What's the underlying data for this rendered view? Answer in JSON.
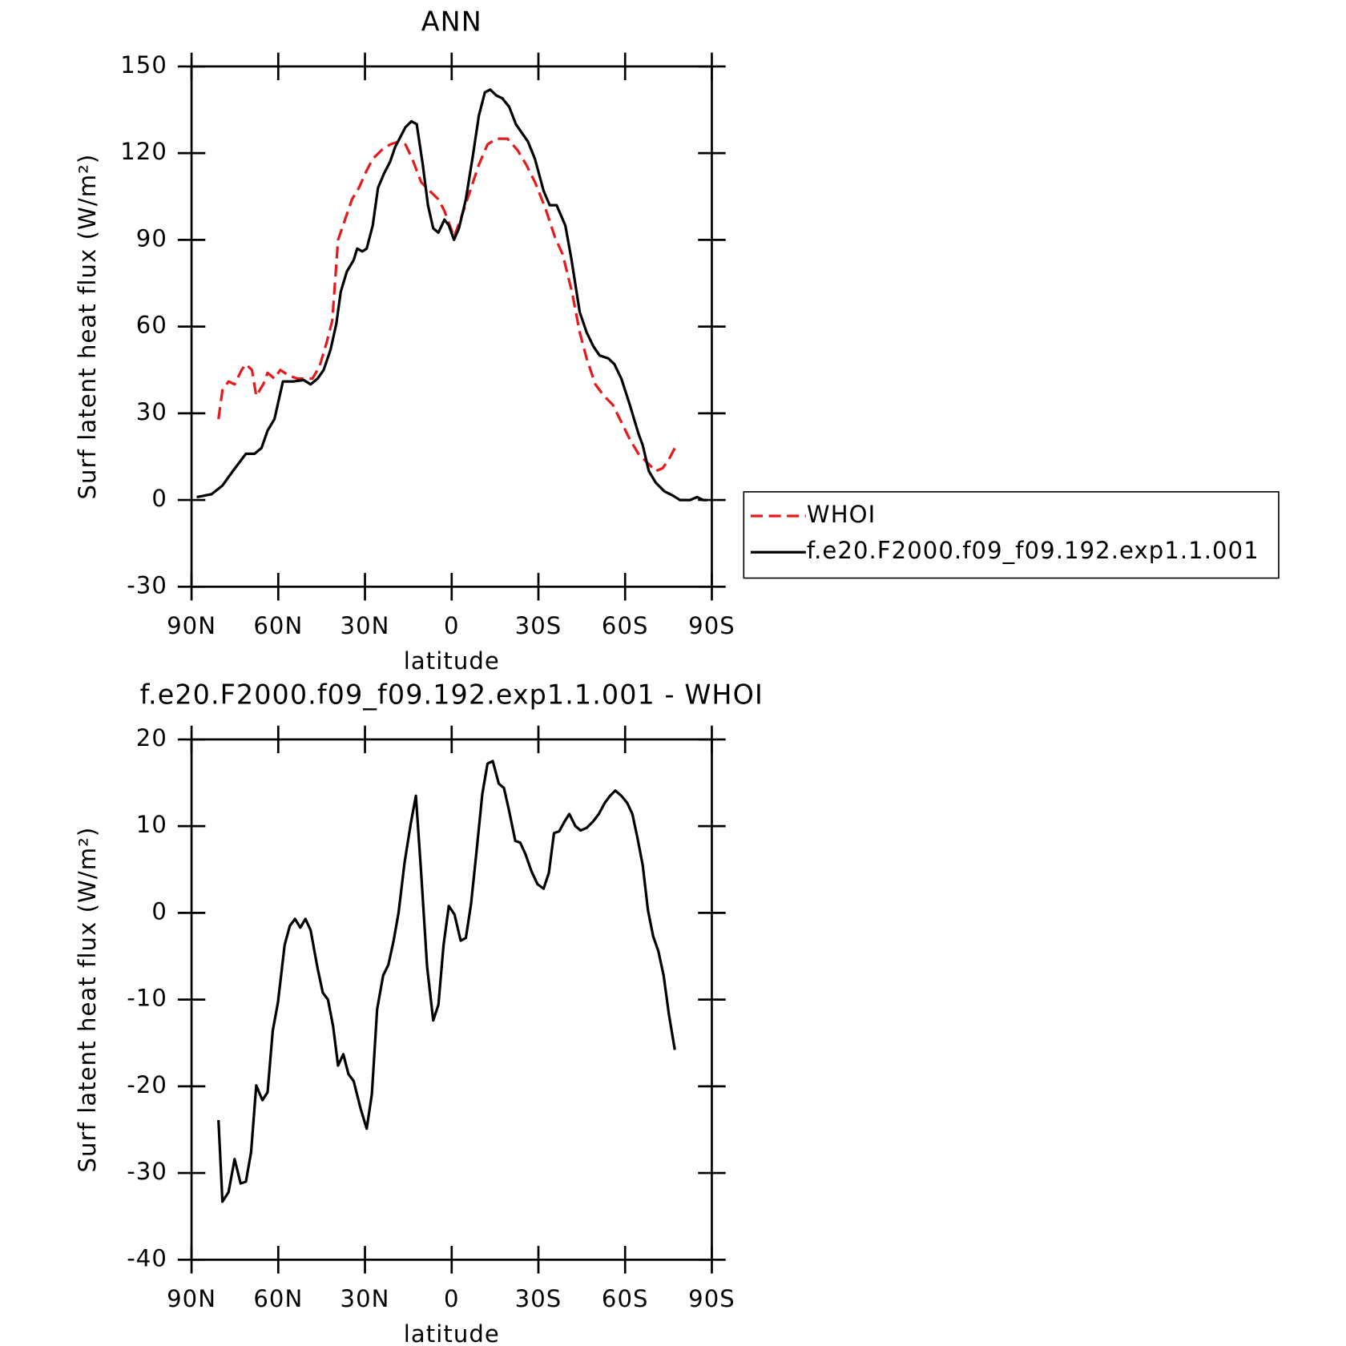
{
  "chart_data": [
    {
      "type": "line",
      "title": "ANN",
      "xlabel": "latitude",
      "ylabel": "Surf latent heat flux (W/m²)",
      "xlim": [
        90,
        -90
      ],
      "xticks": [
        {
          "value": 90,
          "label": "90N"
        },
        {
          "value": 60,
          "label": "60N"
        },
        {
          "value": 30,
          "label": "30N"
        },
        0,
        {
          "value": -30,
          "label": "30S"
        },
        {
          "value": -60,
          "label": "60S"
        },
        {
          "value": -90,
          "label": "90S"
        }
      ],
      "ylim": [
        -30,
        150
      ],
      "yticks": [
        -30,
        0,
        30,
        60,
        90,
        120,
        150
      ],
      "legend": "right",
      "series": [
        {
          "name": "WHOI",
          "color": "#e41a1c",
          "dash": true,
          "x": [
            80.7,
            79.3,
            77.2,
            75.1,
            72.7,
            71.2,
            69.1,
            67.6,
            65.2,
            63.7,
            61.3,
            59.3,
            56.3,
            53.3,
            50.9,
            48.2,
            45.8,
            43.4,
            41.3,
            39.3,
            36.9,
            34.5,
            32.1,
            29.4,
            27.3,
            24.3,
            21.3,
            18.4,
            16.0,
            13.6,
            10.6,
            7.6,
            4.6,
            2.5,
            -0.8,
            -3.4,
            -6.4,
            -9.4,
            -12.4,
            -15.4,
            -19.3,
            -22.8,
            -25.8,
            -28.8,
            -32.4,
            -35.7,
            -38.4,
            -41.6,
            -44.3,
            -46.7,
            -49.7,
            -52.7,
            -55.7,
            -58.7,
            -61.6,
            -64.6,
            -67.6,
            -70.6,
            -73.0,
            -75.1,
            -77.2
          ],
          "values": [
            28,
            38,
            41,
            40,
            45,
            47,
            45,
            36,
            40,
            44,
            42,
            45,
            43,
            42,
            42,
            42,
            46,
            54,
            62,
            90,
            97,
            104,
            108,
            114,
            118,
            121,
            123,
            124,
            123,
            118,
            110,
            107,
            104,
            100,
            91,
            98,
            107,
            116,
            123,
            125,
            125,
            121,
            116,
            110,
            101,
            91,
            85,
            72,
            58,
            49,
            40,
            36,
            33,
            27,
            21,
            16,
            13,
            10,
            11,
            14,
            18
          ]
        },
        {
          "name": "f.e20.F2000.f09_f09.192.exp1.1.001",
          "color": "#000000",
          "dash": false,
          "x": [
            88.2,
            83.1,
            79.3,
            75.7,
            71.2,
            68.2,
            65.8,
            63.7,
            61.3,
            58.4,
            54.8,
            51.2,
            48.8,
            46.4,
            44.3,
            41.9,
            39.9,
            38.4,
            36.3,
            33.9,
            32.7,
            30.9,
            29.4,
            27.3,
            25.5,
            23.4,
            21.3,
            19.6,
            16.0,
            13.9,
            12.1,
            10.0,
            8.2,
            6.4,
            4.6,
            2.5,
            1.0,
            -0.8,
            -2.5,
            -4.9,
            -7.3,
            -9.4,
            -11.5,
            -13.3,
            -15.4,
            -17.5,
            -19.9,
            -22.2,
            -26.4,
            -28.8,
            -31.8,
            -33.9,
            -36.3,
            -39.3,
            -41.3,
            -44.3,
            -46.7,
            -49.1,
            -51.2,
            -54.2,
            -56.3,
            -58.7,
            -61.6,
            -64.6,
            -66.1,
            -68.2,
            -70.6,
            -73.6,
            -76.6,
            -79.0,
            -82.5,
            -84.9,
            -87.0,
            -88.5
          ],
          "values": [
            1,
            2,
            5,
            10,
            16,
            16,
            18,
            24,
            28,
            41,
            41,
            41.5,
            40,
            42,
            45,
            52,
            61,
            72,
            79,
            83,
            87,
            86,
            87,
            95,
            108,
            113,
            117,
            122,
            129,
            131,
            130,
            116,
            102,
            94,
            92.5,
            97,
            95,
            90,
            94,
            104,
            119,
            133,
            141,
            142,
            140,
            139,
            136,
            130,
            124,
            118,
            107,
            102,
            102,
            95,
            84,
            65,
            58,
            53,
            50,
            49,
            47,
            42,
            33,
            23,
            19,
            10,
            6,
            3,
            1.5,
            0,
            0,
            1,
            0,
            0
          ]
        }
      ]
    },
    {
      "type": "line",
      "title": "f.e20.F2000.f09_f09.192.exp1.1.001 - WHOI",
      "xlabel": "latitude",
      "ylabel": "Surf latent heat flux (W/m²)",
      "xlim": [
        90,
        -90
      ],
      "xticks": [
        {
          "value": 90,
          "label": "90N"
        },
        {
          "value": 60,
          "label": "60N"
        },
        {
          "value": 30,
          "label": "30N"
        },
        0,
        {
          "value": -30,
          "label": "30S"
        },
        {
          "value": -60,
          "label": "60S"
        },
        {
          "value": -90,
          "label": "90S"
        }
      ],
      "ylim": [
        -40,
        20
      ],
      "yticks": [
        -40,
        -30,
        -20,
        -10,
        0,
        10,
        20
      ],
      "series": [
        {
          "color": "#000000",
          "dash": false,
          "x": [
            80.7,
            79.3,
            77.2,
            75.1,
            73.0,
            71.2,
            69.4,
            67.6,
            65.5,
            63.7,
            61.9,
            60.1,
            57.8,
            56.0,
            54.2,
            52.4,
            50.6,
            48.8,
            46.4,
            44.6,
            42.8,
            41.0,
            39.3,
            37.5,
            35.7,
            33.9,
            31.5,
            29.4,
            27.6,
            25.8,
            23.7,
            21.9,
            20.1,
            18.4,
            16.3,
            14.2,
            12.4,
            10.6,
            8.5,
            6.4,
            4.6,
            2.8,
            1.0,
            -1.0,
            -3.1,
            -4.9,
            -6.7,
            -8.5,
            -10.6,
            -12.4,
            -14.2,
            -16.3,
            -18.1,
            -19.9,
            -22.0,
            -23.7,
            -25.5,
            -27.6,
            -29.7,
            -31.8,
            -33.6,
            -35.4,
            -37.2,
            -39.0,
            -40.7,
            -42.8,
            -44.6,
            -46.7,
            -48.8,
            -50.9,
            -53.0,
            -54.8,
            -56.6,
            -58.7,
            -60.7,
            -62.5,
            -64.3,
            -66.1,
            -67.9,
            -69.7,
            -71.5,
            -73.3,
            -75.1,
            -77.2
          ],
          "values": [
            -23.9,
            -33.3,
            -32.2,
            -28.4,
            -31.2,
            -31.0,
            -27.6,
            -19.9,
            -21.6,
            -20.7,
            -13.6,
            -10.3,
            -3.7,
            -1.5,
            -0.7,
            -1.7,
            -0.7,
            -2.0,
            -6.4,
            -9.2,
            -10.0,
            -13.1,
            -17.6,
            -16.3,
            -18.6,
            -19.4,
            -22.6,
            -24.9,
            -20.9,
            -11.1,
            -7.2,
            -6.0,
            -3.2,
            0.0,
            5.8,
            10.2,
            13.5,
            4.8,
            -6.2,
            -12.4,
            -10.6,
            -3.7,
            0.8,
            -0.2,
            -3.2,
            -2.9,
            1.0,
            6.8,
            13.7,
            17.2,
            17.5,
            14.9,
            14.4,
            11.7,
            8.3,
            8.1,
            6.8,
            4.8,
            3.3,
            2.8,
            4.6,
            9.2,
            9.4,
            10.5,
            11.4,
            10.0,
            9.5,
            9.8,
            10.5,
            11.4,
            12.7,
            13.5,
            14.1,
            13.5,
            12.7,
            11.4,
            8.6,
            5.5,
            0.3,
            -2.7,
            -4.4,
            -7.2,
            -11.6,
            -15.8
          ]
        }
      ]
    }
  ]
}
